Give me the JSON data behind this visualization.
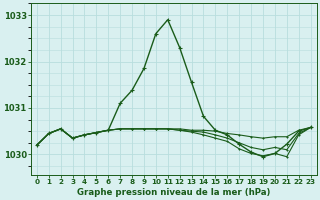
{
  "title": "Graphe pression niveau de la mer (hPa)",
  "background_color": "#d9f0f0",
  "grid_color": "#b8dede",
  "line_color": "#1a5c1a",
  "x_labels": [
    "0",
    "1",
    "2",
    "3",
    "4",
    "5",
    "6",
    "7",
    "8",
    "9",
    "10",
    "11",
    "12",
    "13",
    "14",
    "15",
    "16",
    "17",
    "18",
    "19",
    "20",
    "21",
    "22",
    "23"
  ],
  "ylim": [
    1029.55,
    1033.25
  ],
  "yticks": [
    1030,
    1031,
    1032,
    1033
  ],
  "series": [
    {
      "data": [
        1030.2,
        1030.45,
        1030.55,
        1030.35,
        1030.42,
        1030.47,
        1030.52,
        1031.1,
        1031.38,
        1031.85,
        1032.6,
        1032.9,
        1032.3,
        1031.55,
        1030.82,
        1030.52,
        1030.42,
        1030.22,
        1030.05,
        1029.95,
        1030.02,
        1030.22,
        1030.5,
        1030.58
      ],
      "linewidth": 1.0,
      "markersize": 3.0
    },
    {
      "data": [
        1030.2,
        1030.45,
        1030.55,
        1030.35,
        1030.42,
        1030.47,
        1030.52,
        1030.55,
        1030.55,
        1030.55,
        1030.55,
        1030.55,
        1030.55,
        1030.52,
        1030.52,
        1030.5,
        1030.45,
        1030.42,
        1030.38,
        1030.35,
        1030.38,
        1030.38,
        1030.52,
        1030.58
      ],
      "linewidth": 0.8,
      "markersize": 2.0
    },
    {
      "data": [
        1030.2,
        1030.45,
        1030.55,
        1030.35,
        1030.42,
        1030.47,
        1030.52,
        1030.55,
        1030.55,
        1030.55,
        1030.55,
        1030.55,
        1030.52,
        1030.5,
        1030.48,
        1030.42,
        1030.35,
        1030.25,
        1030.15,
        1030.1,
        1030.15,
        1030.1,
        1030.45,
        1030.58
      ],
      "linewidth": 0.8,
      "markersize": 2.0
    },
    {
      "data": [
        1030.2,
        1030.45,
        1030.55,
        1030.35,
        1030.42,
        1030.47,
        1030.52,
        1030.55,
        1030.55,
        1030.55,
        1030.55,
        1030.55,
        1030.52,
        1030.48,
        1030.42,
        1030.35,
        1030.28,
        1030.12,
        1030.02,
        1029.97,
        1030.02,
        1029.95,
        1030.42,
        1030.58
      ],
      "linewidth": 0.8,
      "markersize": 2.0
    }
  ],
  "figsize": [
    3.2,
    2.0
  ],
  "dpi": 100
}
